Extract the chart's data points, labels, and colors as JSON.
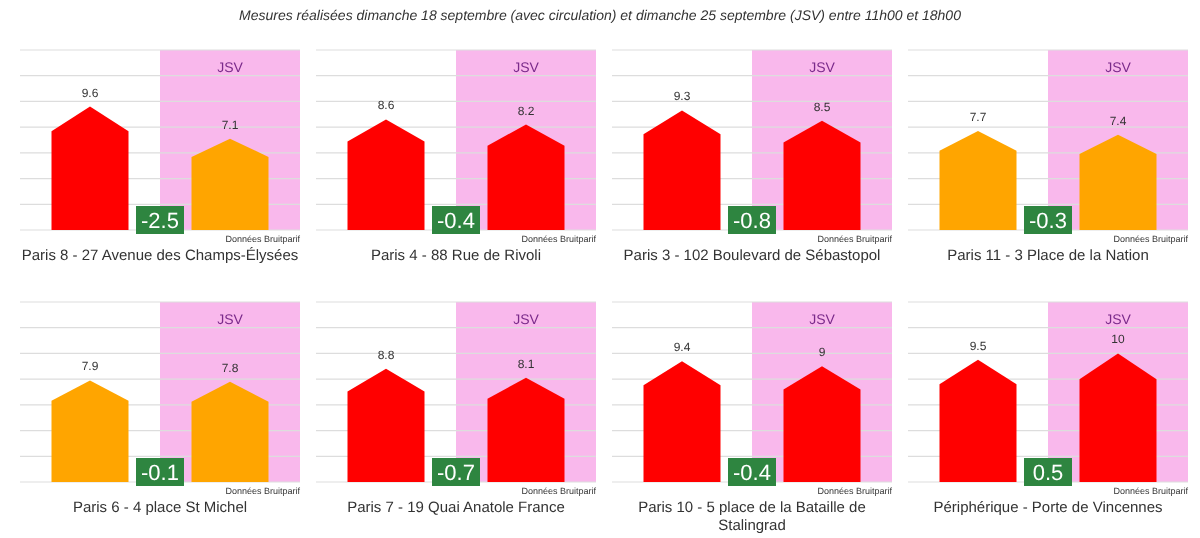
{
  "chart_data": [
    {
      "type": "bar",
      "subtitle": "Mesures réalisées dimanche 18 septembre (avec circulation) et dimanche 25 septembre (JSV) entre 11h00 et 18h00",
      "title": "Paris 8 - 27 Avenue des Champs-Élysées",
      "categories": [
        null,
        null
      ],
      "values": [
        9.6,
        7.1
      ],
      "colors": [
        "#ff0000",
        "#ffa500"
      ],
      "data_labels": true,
      "ylim": [
        0,
        14
      ],
      "yticks": [
        {
          "value": 0,
          "label": null
        },
        {
          "value": 2,
          "label": null
        },
        {
          "value": 4,
          "label": null
        },
        {
          "value": 6,
          "label": null
        },
        {
          "value": 8,
          "label": null
        },
        {
          "value": 10,
          "label": null
        },
        {
          "value": 12,
          "label": null
        },
        {
          "value": 14,
          "label": null
        }
      ],
      "grid": "y",
      "annotations": [
        "JSV",
        "-2.5",
        "Données Bruitparif"
      ]
    },
    {
      "type": "bar",
      "title": "Paris 4 - 88 Rue de Rivoli",
      "categories": [
        null,
        null
      ],
      "values": [
        8.6,
        8.2
      ],
      "colors": [
        "#ff0000",
        "#ff0000"
      ],
      "data_labels": true,
      "ylim": [
        0,
        14
      ],
      "yticks": [
        {
          "value": 0,
          "label": null
        },
        {
          "value": 2,
          "label": null
        },
        {
          "value": 4,
          "label": null
        },
        {
          "value": 6,
          "label": null
        },
        {
          "value": 8,
          "label": null
        },
        {
          "value": 10,
          "label": null
        },
        {
          "value": 12,
          "label": null
        },
        {
          "value": 14,
          "label": null
        }
      ],
      "grid": "y",
      "annotations": [
        "JSV",
        "-0.4",
        "Données Bruitparif"
      ]
    },
    {
      "type": "bar",
      "title": "Paris 3 - 102 Boulevard de Sébastopol",
      "categories": [
        null,
        null
      ],
      "values": [
        9.3,
        8.5
      ],
      "colors": [
        "#ff0000",
        "#ff0000"
      ],
      "data_labels": true,
      "ylim": [
        0,
        14
      ],
      "yticks": [
        {
          "value": 0,
          "label": null
        },
        {
          "value": 2,
          "label": null
        },
        {
          "value": 4,
          "label": null
        },
        {
          "value": 6,
          "label": null
        },
        {
          "value": 8,
          "label": null
        },
        {
          "value": 10,
          "label": null
        },
        {
          "value": 12,
          "label": null
        },
        {
          "value": 14,
          "label": null
        }
      ],
      "grid": "y",
      "annotations": [
        "JSV",
        "-0.8",
        "Données Bruitparif"
      ]
    },
    {
      "type": "bar",
      "title": "Paris 11 - 3 Place de la Nation",
      "categories": [
        null,
        null
      ],
      "values": [
        7.7,
        7.4
      ],
      "colors": [
        "#ffa500",
        "#ffa500"
      ],
      "data_labels": true,
      "ylim": [
        0,
        14
      ],
      "yticks": [
        {
          "value": 0,
          "label": null
        },
        {
          "value": 2,
          "label": null
        },
        {
          "value": 4,
          "label": null
        },
        {
          "value": 6,
          "label": null
        },
        {
          "value": 8,
          "label": null
        },
        {
          "value": 10,
          "label": null
        },
        {
          "value": 12,
          "label": null
        },
        {
          "value": 14,
          "label": null
        }
      ],
      "grid": "y",
      "annotations": [
        "JSV",
        "-0.3",
        "Données Bruitparif"
      ]
    },
    {
      "type": "bar",
      "title": "Paris 6 - 4 place St Michel",
      "categories": [
        null,
        null
      ],
      "values": [
        7.9,
        7.8
      ],
      "colors": [
        "#ffa500",
        "#ffa500"
      ],
      "data_labels": true,
      "ylim": [
        0,
        14
      ],
      "yticks": [
        {
          "value": 0,
          "label": null
        },
        {
          "value": 2,
          "label": null
        },
        {
          "value": 4,
          "label": null
        },
        {
          "value": 6,
          "label": null
        },
        {
          "value": 8,
          "label": null
        },
        {
          "value": 10,
          "label": null
        },
        {
          "value": 12,
          "label": null
        },
        {
          "value": 14,
          "label": null
        }
      ],
      "grid": "y",
      "annotations": [
        "JSV",
        "-0.1",
        "Données Bruitparif"
      ]
    },
    {
      "type": "bar",
      "title": "Paris 7 - 19 Quai Anatole France",
      "categories": [
        null,
        null
      ],
      "values": [
        8.8,
        8.1
      ],
      "colors": [
        "#ff0000",
        "#ff0000"
      ],
      "data_labels": true,
      "ylim": [
        0,
        14
      ],
      "yticks": [
        {
          "value": 0,
          "label": null
        },
        {
          "value": 2,
          "label": null
        },
        {
          "value": 4,
          "label": null
        },
        {
          "value": 6,
          "label": null
        },
        {
          "value": 8,
          "label": null
        },
        {
          "value": 10,
          "label": null
        },
        {
          "value": 12,
          "label": null
        },
        {
          "value": 14,
          "label": null
        }
      ],
      "grid": "y",
      "annotations": [
        "JSV",
        "-0.7",
        "Données Bruitparif"
      ]
    },
    {
      "type": "bar",
      "title": "Paris 10 - 5 place de la Bataille de Stalingrad",
      "categories": [
        null,
        null
      ],
      "values": [
        9.4,
        9
      ],
      "colors": [
        "#ff0000",
        "#ff0000"
      ],
      "data_labels": true,
      "ylim": [
        0,
        14
      ],
      "yticks": [
        {
          "value": 0,
          "label": null
        },
        {
          "value": 2,
          "label": null
        },
        {
          "value": 4,
          "label": null
        },
        {
          "value": 6,
          "label": null
        },
        {
          "value": 8,
          "label": null
        },
        {
          "value": 10,
          "label": null
        },
        {
          "value": 12,
          "label": null
        },
        {
          "value": 14,
          "label": null
        }
      ],
      "grid": "y",
      "annotations": [
        "JSV",
        "-0.4",
        "Données Bruitparif"
      ]
    },
    {
      "type": "bar",
      "title": "Périphérique - Porte de Vincennes",
      "categories": [
        null,
        null
      ],
      "values": [
        9.5,
        10
      ],
      "colors": [
        "#ff0000",
        "#ff0000"
      ],
      "data_labels": true,
      "ylim": [
        0,
        14
      ],
      "yticks": [
        {
          "value": 0,
          "label": null
        },
        {
          "value": 2,
          "label": null
        },
        {
          "value": 4,
          "label": null
        },
        {
          "value": 6,
          "label": null
        },
        {
          "value": 8,
          "label": null
        },
        {
          "value": 10,
          "label": null
        },
        {
          "value": 12,
          "label": null
        },
        {
          "value": 14,
          "label": null
        }
      ],
      "grid": "y",
      "annotations": [
        "JSV",
        "0.5",
        "Données Bruitparif"
      ]
    }
  ]
}
